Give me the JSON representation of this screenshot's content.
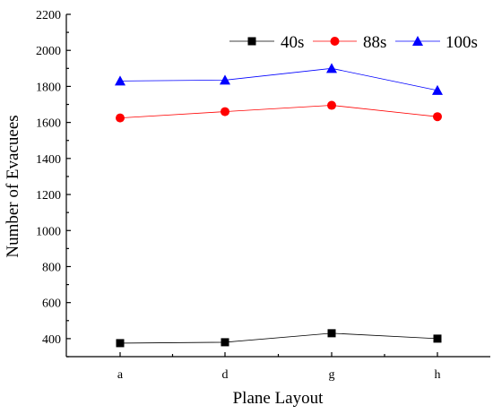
{
  "chart_data": {
    "type": "line",
    "categories": [
      "a",
      "d",
      "g",
      "h"
    ],
    "series": [
      {
        "name": "40s",
        "values": [
          375,
          380,
          430,
          400
        ],
        "color": "#000000",
        "marker": "square"
      },
      {
        "name": "88s",
        "values": [
          1625,
          1660,
          1695,
          1632
        ],
        "color": "#ff0000",
        "marker": "circle"
      },
      {
        "name": "100s",
        "values": [
          1830,
          1835,
          1900,
          1778
        ],
        "color": "#0000ff",
        "marker": "triangle"
      }
    ],
    "xlabel": "Plane Layout",
    "ylabel": "Number of Evacuees",
    "ylim": [
      300,
      2200
    ],
    "yticks": [
      400,
      600,
      800,
      1000,
      1200,
      1400,
      1600,
      1800,
      2000,
      2200
    ],
    "grid": false,
    "legend_position": "top-right"
  }
}
